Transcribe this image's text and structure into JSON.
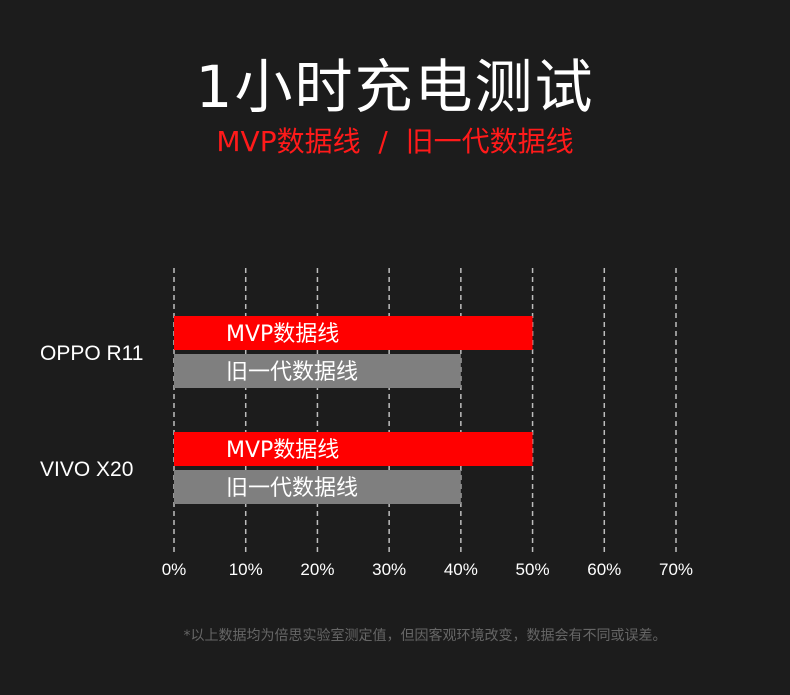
{
  "header": {
    "title": "1小时充电测试",
    "subtitle": "MVP数据线  /  旧一代数据线"
  },
  "footnote": "*以上数据均为倍思实验室测定值，但因客观环境改变，数据会有不同或误差。",
  "colors": {
    "background": "#1c1c1c",
    "mvp": "#ff0000",
    "old": "#7f7f7f",
    "subtitle": "#ff1a1a",
    "grid": "#bdbdbd",
    "footnote": "#666666"
  },
  "chart_data": {
    "type": "bar",
    "orientation": "horizontal",
    "categories": [
      "OPPO R11",
      "VIVO X20"
    ],
    "series": [
      {
        "name": "MVP数据线",
        "values": [
          50,
          50
        ]
      },
      {
        "name": "旧一代数据线",
        "values": [
          40,
          40
        ]
      }
    ],
    "xlim": [
      0,
      70
    ],
    "xticks": [
      "0%",
      "10%",
      "20%",
      "30%",
      "40%",
      "50%",
      "60%",
      "70%"
    ],
    "grid": "vertical-dashed"
  }
}
